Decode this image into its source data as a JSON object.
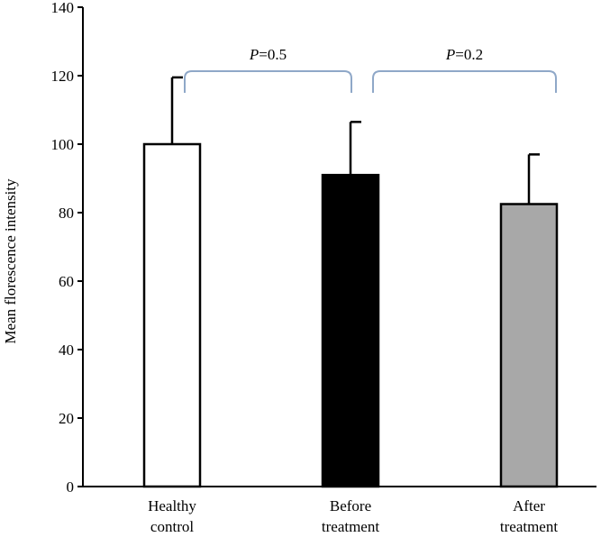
{
  "chart_data": {
    "type": "bar",
    "title": "",
    "xlabel": "",
    "ylabel": "Mean florescence intensity",
    "ylim": [
      0,
      140
    ],
    "yticks": [
      "0",
      "20",
      "40",
      "60",
      "80",
      "100",
      "120",
      "140"
    ],
    "categories": [
      {
        "line1": "Healthy",
        "line2": "control"
      },
      {
        "line1": "Before",
        "line2": "treatment"
      },
      {
        "line1": "After",
        "line2": "treatment"
      }
    ],
    "values": [
      100,
      91,
      82.5
    ],
    "errors": [
      19.5,
      15.5,
      14.5
    ],
    "colors": [
      "#ffffff",
      "#000000",
      "#a8a8a8"
    ],
    "grid": false,
    "annotations": [
      {
        "italic": "P",
        "rest": "=0.5",
        "from": 0,
        "to": 1
      },
      {
        "italic": "P",
        "rest": "=0.2",
        "from": 1,
        "to": 2
      }
    ],
    "bracket_color": "#8fa8c8"
  }
}
